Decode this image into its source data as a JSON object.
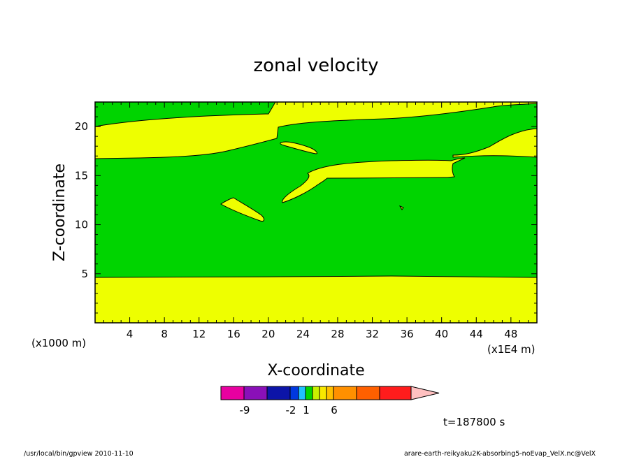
{
  "chart_data": {
    "type": "heatmap",
    "title": "zonal velocity",
    "xlabel": "X-coordinate",
    "ylabel": "Z-coordinate",
    "x_unit_label": "(x1E4 m)",
    "y_unit_label": "(x1000 m)",
    "xlim": [
      0,
      51
    ],
    "ylim": [
      0,
      22.5
    ],
    "x_ticks": [
      "4",
      "8",
      "12",
      "16",
      "20",
      "24",
      "28",
      "32",
      "36",
      "40",
      "44",
      "48"
    ],
    "y_ticks": [
      "5",
      "10",
      "15",
      "20"
    ],
    "fill_colors": {
      "background": "#00d400",
      "positive_band": "#eeff00"
    },
    "colorbar": {
      "colors": [
        "#e800a0",
        "#8a10b8",
        "#0c14a8",
        "#0038e0",
        "#20c0ff",
        "#00d400",
        "#c8f000",
        "#f8e800",
        "#ffc000",
        "#ff9000",
        "#ff6000",
        "#ff1c1c",
        "#ff8080",
        "#ffc0c0"
      ],
      "labels": [
        "-9",
        "-2",
        "1",
        "6"
      ]
    },
    "time_label": "t=187800 s",
    "footer_left": "/usr/local/bin/gpview  2010-11-10",
    "footer_right": "arare-earth-reikyaku2K-absorbing5-noEvap_VelX.nc@VelX"
  }
}
